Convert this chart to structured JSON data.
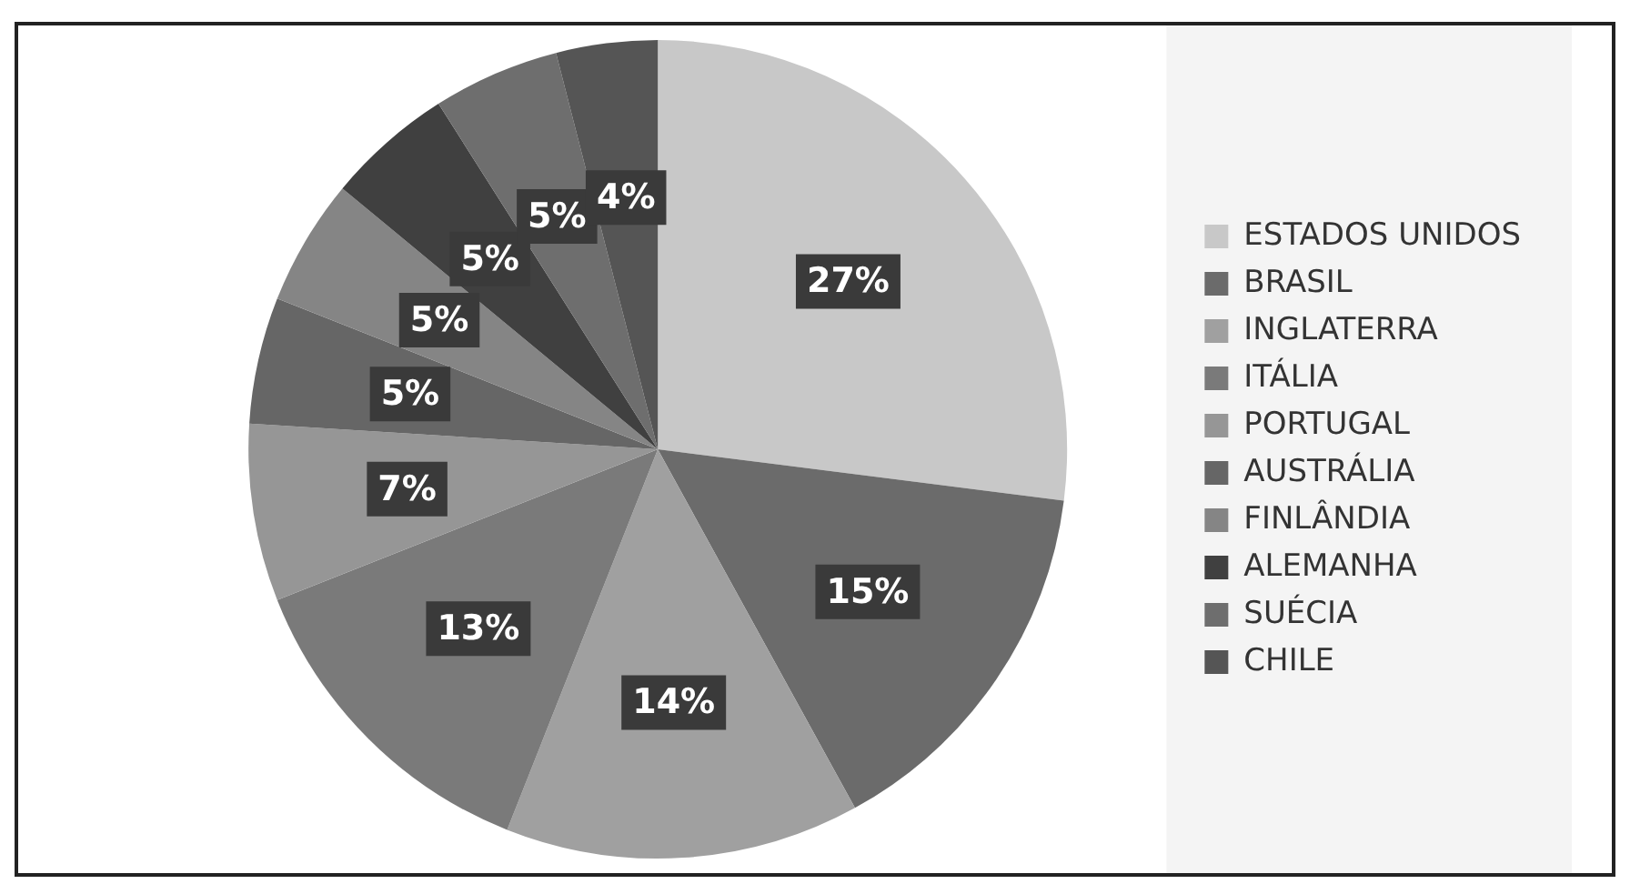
{
  "chart_data": {
    "type": "pie",
    "categories": [
      "ESTADOS UNIDOS",
      "BRASIL",
      "INGLATERRA",
      "ITÁLIA",
      "PORTUGAL",
      "AUSTRÁLIA",
      "FINLÂNDIA",
      "ALEMANHA",
      "SUÉCIA",
      "CHILE"
    ],
    "values": [
      27,
      15,
      14,
      13,
      7,
      5,
      5,
      5,
      5,
      4
    ],
    "value_labels": [
      "27%",
      "15%",
      "14%",
      "13%",
      "7%",
      "5%",
      "5%",
      "5%",
      "5%",
      "4%"
    ],
    "colors": [
      "#c8c8c8",
      "#6b6b6b",
      "#a0a0a0",
      "#7a7a7a",
      "#969696",
      "#666666",
      "#858585",
      "#404040",
      "#6e6e6e",
      "#555555"
    ],
    "legend": "right"
  }
}
